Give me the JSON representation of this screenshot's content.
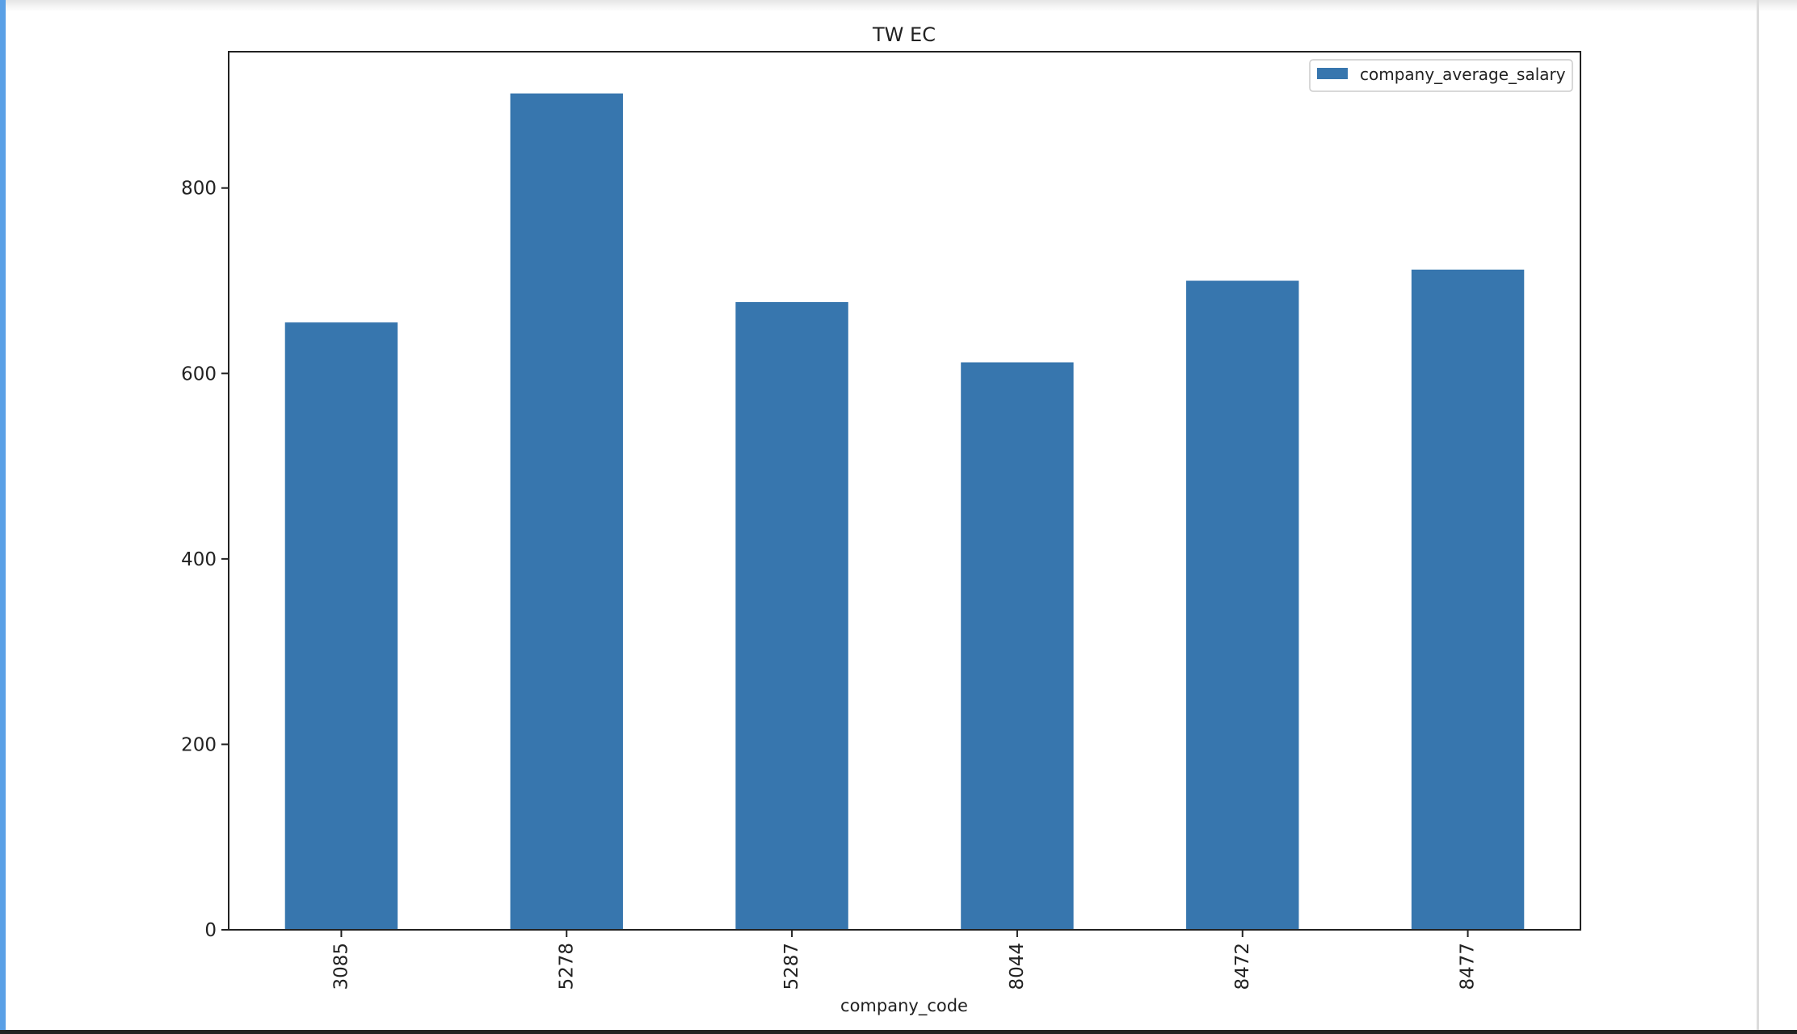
{
  "chart_data": {
    "type": "bar",
    "title": "TW EC",
    "xlabel": "company_code",
    "ylabel": "",
    "categories": [
      "3085",
      "5278",
      "5287",
      "8044",
      "8472",
      "8477"
    ],
    "series": [
      {
        "name": "company_average_salary",
        "values": [
          655,
          902,
          677,
          612,
          700,
          712
        ],
        "color": "#3776ae"
      }
    ],
    "ylim": [
      0,
      947
    ],
    "yticks": [
      0,
      200,
      400,
      600,
      800
    ],
    "grid": false,
    "legend_position": "top-right",
    "x_tick_rotation": "vertical"
  }
}
